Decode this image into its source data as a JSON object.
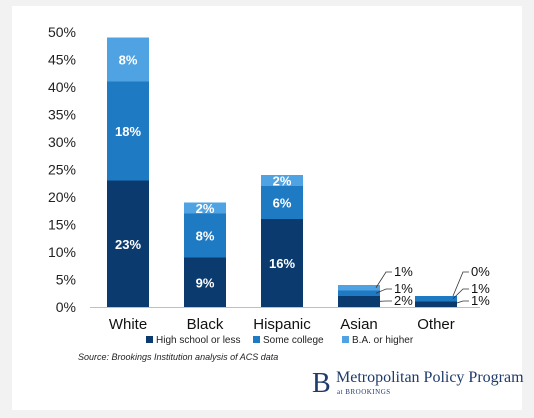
{
  "chart_data": {
    "type": "bar",
    "stacked": true,
    "categories": [
      "White",
      "Black",
      "Hispanic",
      "Asian",
      "Other"
    ],
    "series": [
      {
        "name": "High school or less",
        "values": [
          23,
          9,
          16,
          2,
          1
        ],
        "color": "#0b3a6e",
        "labels": [
          "23%",
          "9%",
          "16%",
          "2%",
          "1%"
        ]
      },
      {
        "name": "Some college",
        "values": [
          18,
          8,
          6,
          1,
          1
        ],
        "color": "#1f7ac4",
        "labels": [
          "18%",
          "8%",
          "6%",
          "1%",
          "1%"
        ]
      },
      {
        "name": "B.A. or higher",
        "values": [
          8,
          2,
          2,
          1,
          0
        ],
        "color": "#4fa3e3",
        "labels": [
          "8%",
          "2%",
          "2%",
          "1%",
          "0%"
        ]
      }
    ],
    "y_ticks": [
      "0%",
      "5%",
      "10%",
      "15%",
      "20%",
      "25%",
      "30%",
      "35%",
      "40%",
      "45%",
      "50%"
    ],
    "ylim": [
      0,
      50
    ],
    "grid": false,
    "legend_position": "bottom",
    "xlabel": "",
    "ylabel": ""
  },
  "source": "Source: Brookings Institution analysis of ACS data",
  "logo": {
    "mark": "B",
    "name": "Metropolitan Policy Program",
    "sub": "at BROOKINGS"
  }
}
